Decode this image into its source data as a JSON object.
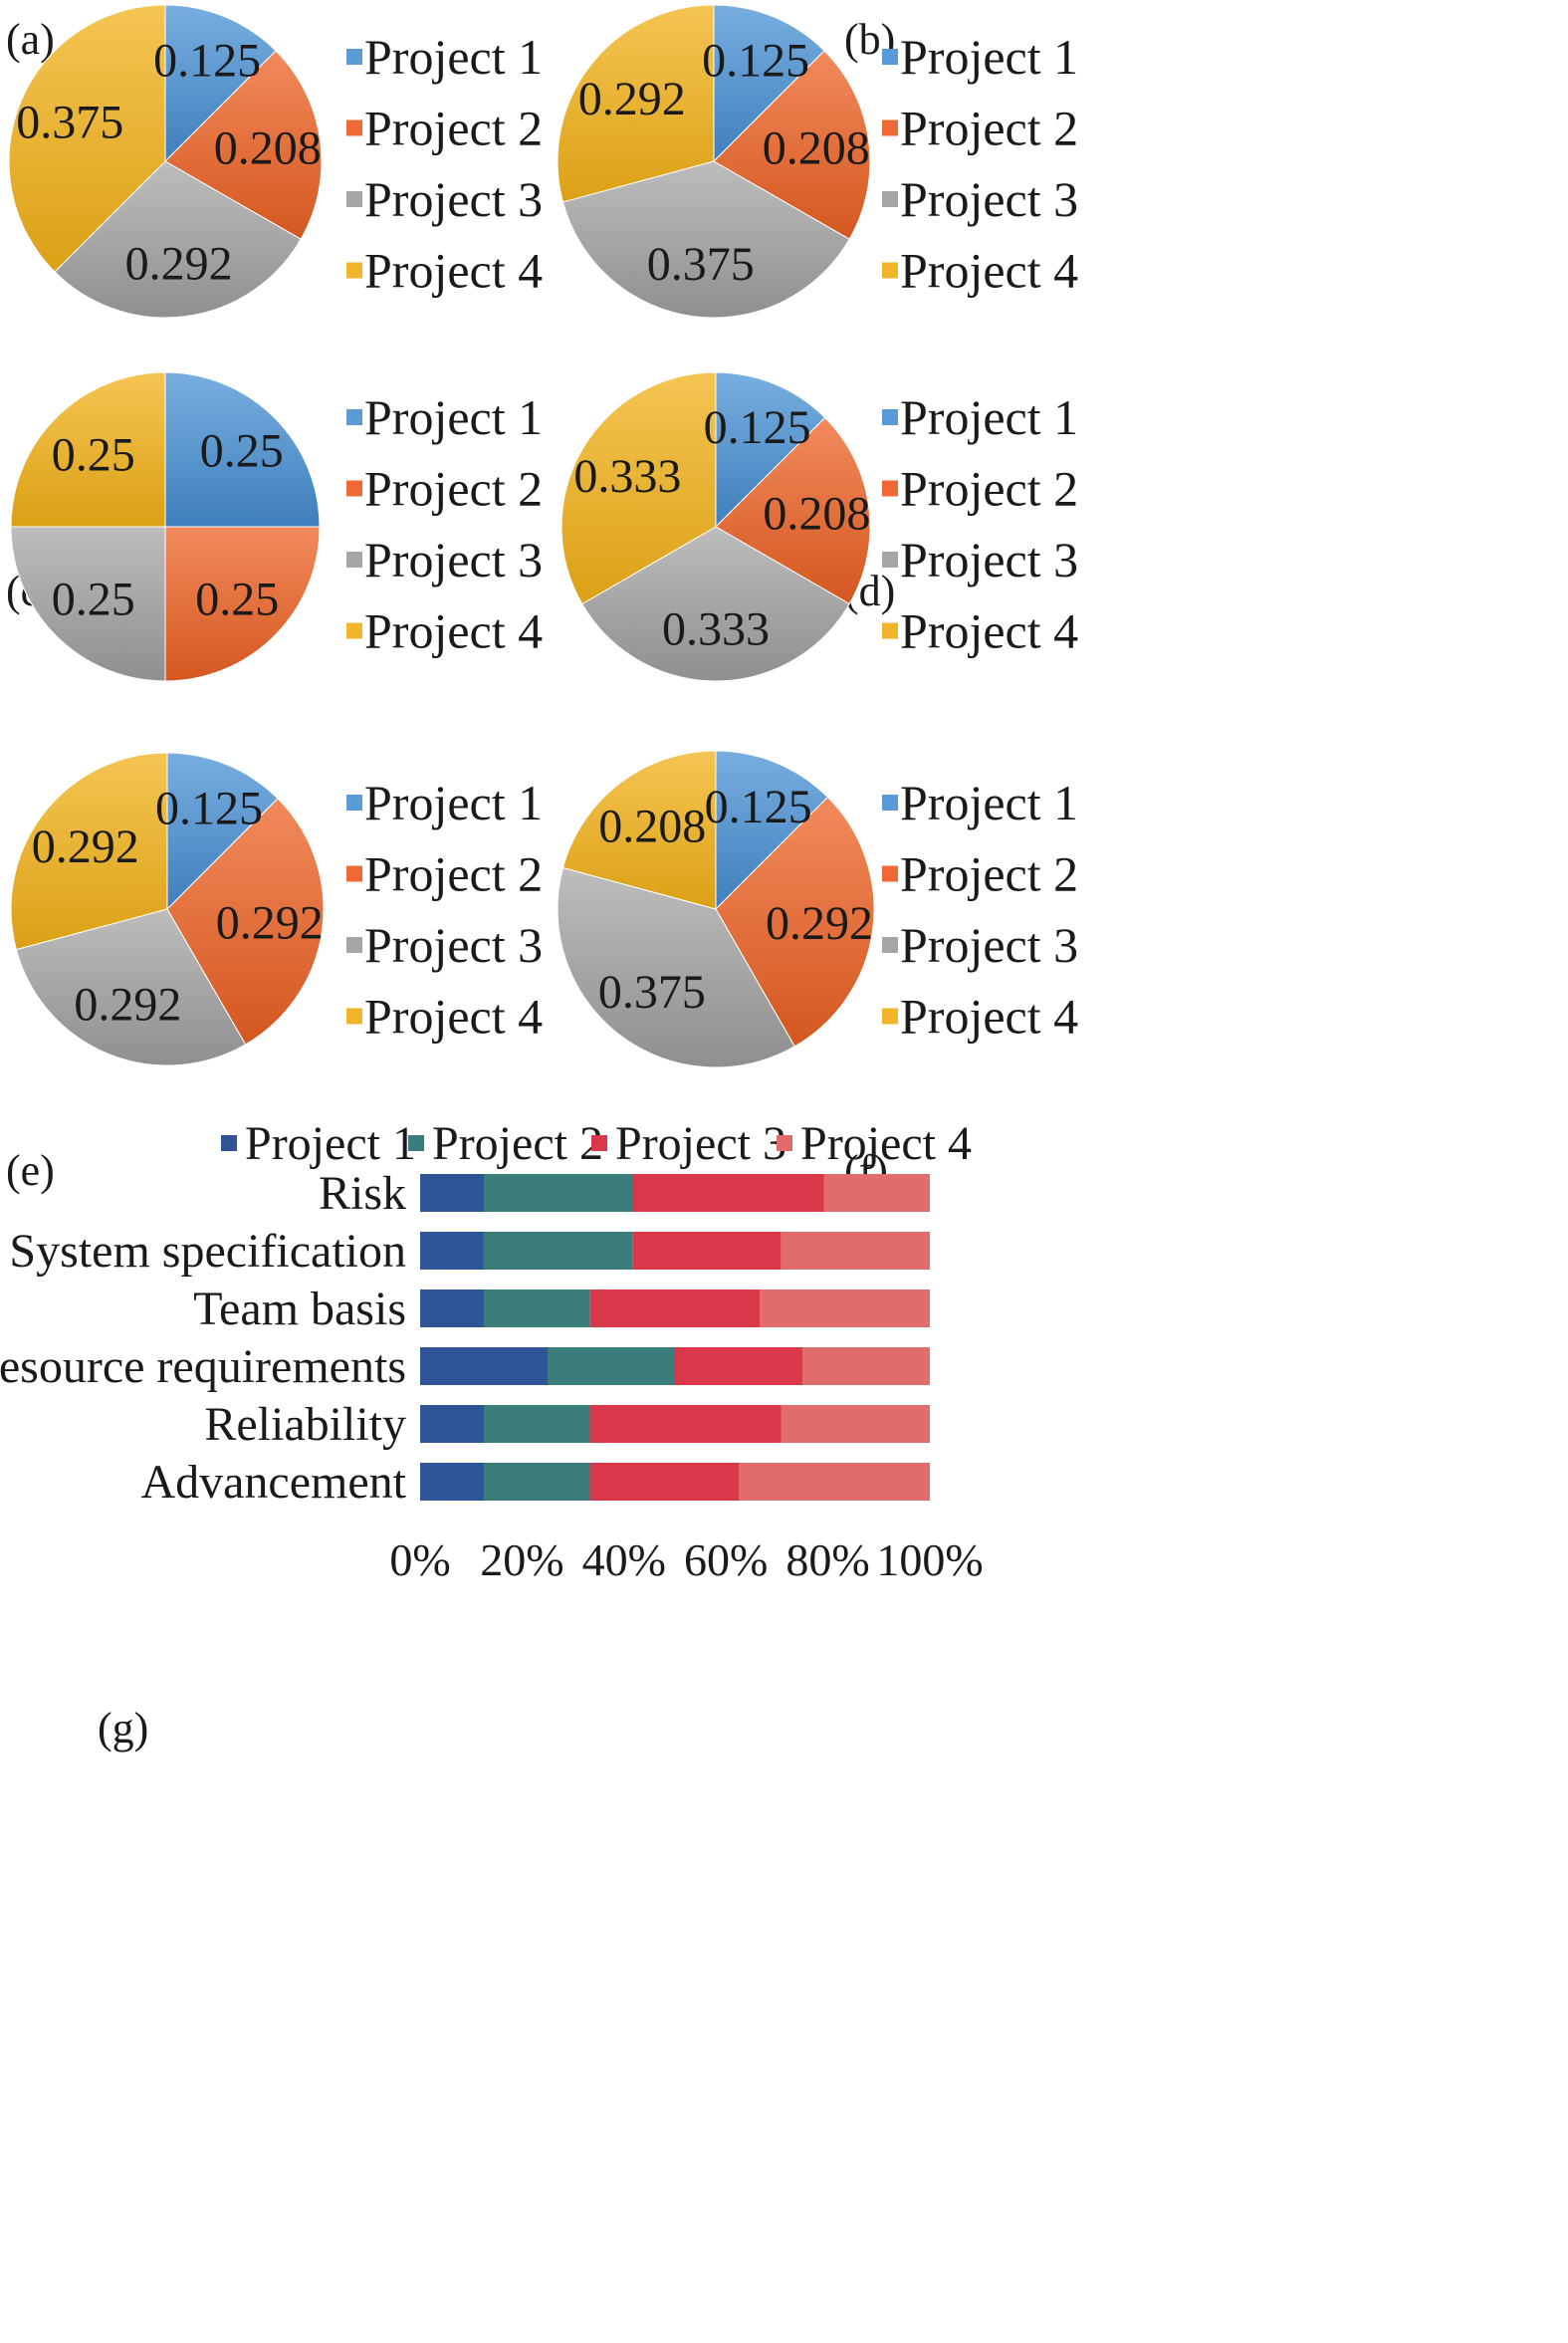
{
  "pie_legend_labels": [
    "Project 1",
    "Project 2",
    "Project 3",
    "Project 4"
  ],
  "colors": {
    "pie": [
      "#5b9bd5",
      "#ed6a36",
      "#a5a5a5",
      "#f1b52c"
    ],
    "pie_light": [
      "#78aee0",
      "#f28a5c",
      "#bdbdbd",
      "#f5c553"
    ],
    "pie_dark": [
      "#3f7fbd",
      "#d4571f",
      "#8f8f8f",
      "#dba015"
    ],
    "bar": [
      "#2f5597",
      "#3a7d7a",
      "#d9384b",
      "#e06c6c"
    ]
  },
  "chart_data": [
    {
      "type": "pie",
      "panel": "(a)",
      "categories": [
        "Project 1",
        "Project 2",
        "Project 3",
        "Project 4"
      ],
      "values": [
        0.125,
        0.208,
        0.292,
        0.375
      ],
      "labels": [
        "0.125",
        "0.208",
        "0.292",
        "0.375"
      ]
    },
    {
      "type": "pie",
      "panel": "(b)",
      "categories": [
        "Project 1",
        "Project 2",
        "Project 3",
        "Project 4"
      ],
      "values": [
        0.125,
        0.208,
        0.375,
        0.292
      ],
      "labels": [
        "0.125",
        "0.208",
        "0.375",
        "0.292"
      ]
    },
    {
      "type": "pie",
      "panel": "(c)",
      "categories": [
        "Project 1",
        "Project 2",
        "Project 3",
        "Project 4"
      ],
      "values": [
        0.25,
        0.25,
        0.25,
        0.25
      ],
      "labels": [
        "0.25",
        "0.25",
        "0.25",
        "0.25"
      ]
    },
    {
      "type": "pie",
      "panel": "(d)",
      "categories": [
        "Project 1",
        "Project 2",
        "Project 3",
        "Project 4"
      ],
      "values": [
        0.125,
        0.208,
        0.333,
        0.333
      ],
      "labels": [
        "0.125",
        "0.208",
        "0.333",
        "0.333"
      ]
    },
    {
      "type": "pie",
      "panel": "(e)",
      "categories": [
        "Project 1",
        "Project 2",
        "Project 3",
        "Project 4"
      ],
      "values": [
        0.125,
        0.292,
        0.292,
        0.292
      ],
      "labels": [
        "0.125",
        "0.292",
        "0.292",
        "0.292"
      ]
    },
    {
      "type": "pie",
      "panel": "(f)",
      "categories": [
        "Project 1",
        "Project 2",
        "Project 3",
        "Project 4"
      ],
      "values": [
        0.125,
        0.292,
        0.375,
        0.208
      ],
      "labels": [
        "0.125",
        "0.292",
        "0.375",
        "0.208"
      ]
    },
    {
      "type": "bar",
      "orientation": "horizontal",
      "stacking": "percent",
      "panel": "(g)",
      "categories": [
        "Risk",
        "System specification",
        "Team basis",
        "Resource requirements",
        "Reliability",
        "Advancement"
      ],
      "series": [
        {
          "name": "Project 1",
          "values": [
            0.125,
            0.125,
            0.125,
            0.25,
            0.125,
            0.125
          ]
        },
        {
          "name": "Project 2",
          "values": [
            0.292,
            0.292,
            0.208,
            0.25,
            0.208,
            0.208
          ]
        },
        {
          "name": "Project 3",
          "values": [
            0.375,
            0.292,
            0.333,
            0.25,
            0.375,
            0.292
          ]
        },
        {
          "name": "Project 4",
          "values": [
            0.208,
            0.292,
            0.333,
            0.25,
            0.292,
            0.375
          ]
        }
      ],
      "xticks": [
        "0%",
        "20%",
        "40%",
        "60%",
        "80%",
        "100%"
      ],
      "xlim": [
        0,
        100
      ],
      "legend": "top"
    }
  ]
}
